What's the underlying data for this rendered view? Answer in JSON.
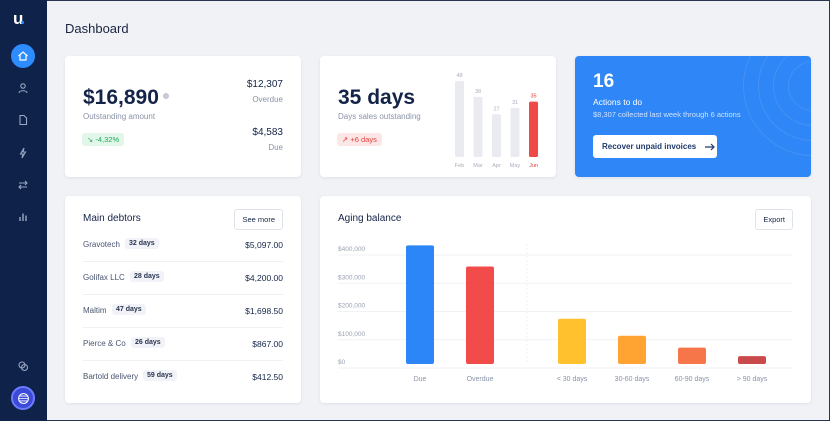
{
  "sidebar": {
    "logo": "u",
    "items": [
      {
        "icon": "home-icon",
        "active": true
      },
      {
        "icon": "user-icon"
      },
      {
        "icon": "document-icon"
      },
      {
        "icon": "lightning-icon"
      },
      {
        "icon": "transfer-icon"
      },
      {
        "icon": "bar-chart-icon"
      }
    ],
    "bottom_icon": "chat-icon",
    "avatar_icon": "globe-icon"
  },
  "page": {
    "title": "Dashboard"
  },
  "outstanding": {
    "amount": "$16,890",
    "label": "Outstanding amount",
    "change": "↘ -4,32%",
    "overdue_amount": "$12,307",
    "overdue_label": "Overdue",
    "due_amount": "$4,583",
    "due_label": "Due"
  },
  "dso": {
    "value": "35 days",
    "label": "Days sales outstanding",
    "change": "↗ +6 days"
  },
  "actions": {
    "count": "16",
    "title": "Actions to do",
    "subtitle": "$8,307 collected last week through 6 actions",
    "button": "Recover unpaid invoices"
  },
  "debtors": {
    "title": "Main debtors",
    "see_more": "See more",
    "rows": [
      {
        "name": "Gravotech",
        "days": "32 days",
        "amount": "$5,097.00"
      },
      {
        "name": "Golifax LLC",
        "days": "28 days",
        "amount": "$4,200.00"
      },
      {
        "name": "Maltim",
        "days": "47 days",
        "amount": "$1,698.50"
      },
      {
        "name": "Pierce & Co",
        "days": "26 days",
        "amount": "$867.00"
      },
      {
        "name": "Bartold delivery",
        "days": "59 days",
        "amount": "$412.50"
      }
    ]
  },
  "aging": {
    "title": "Aging balance",
    "export": "Export"
  },
  "chart_data": [
    {
      "type": "bar",
      "categories": [
        "Feb",
        "Mar",
        "Apr",
        "May",
        "Jun"
      ],
      "values": [
        48,
        38,
        27,
        31,
        35
      ],
      "highlight": "Jun",
      "colors": {
        "default": "#e9ebf0",
        "highlight": "#f04a47"
      }
    },
    {
      "type": "bar",
      "title": "Aging balance",
      "categories": [
        "Due",
        "Overdue",
        "< 30 days",
        "30-60 days",
        "60-90 days",
        "> 90 days"
      ],
      "values": [
        420000,
        345000,
        160000,
        100000,
        58000,
        28000
      ],
      "ylim": [
        0,
        400000
      ],
      "yticks": [
        "$0",
        "$100,000",
        "$200,000",
        "$300,000",
        "$400,000"
      ],
      "grid": true,
      "colors": [
        "#2d86f8",
        "#f24c4a",
        "#ffc22e",
        "#ffa432",
        "#f6764a",
        "#c94a4a"
      ]
    }
  ]
}
